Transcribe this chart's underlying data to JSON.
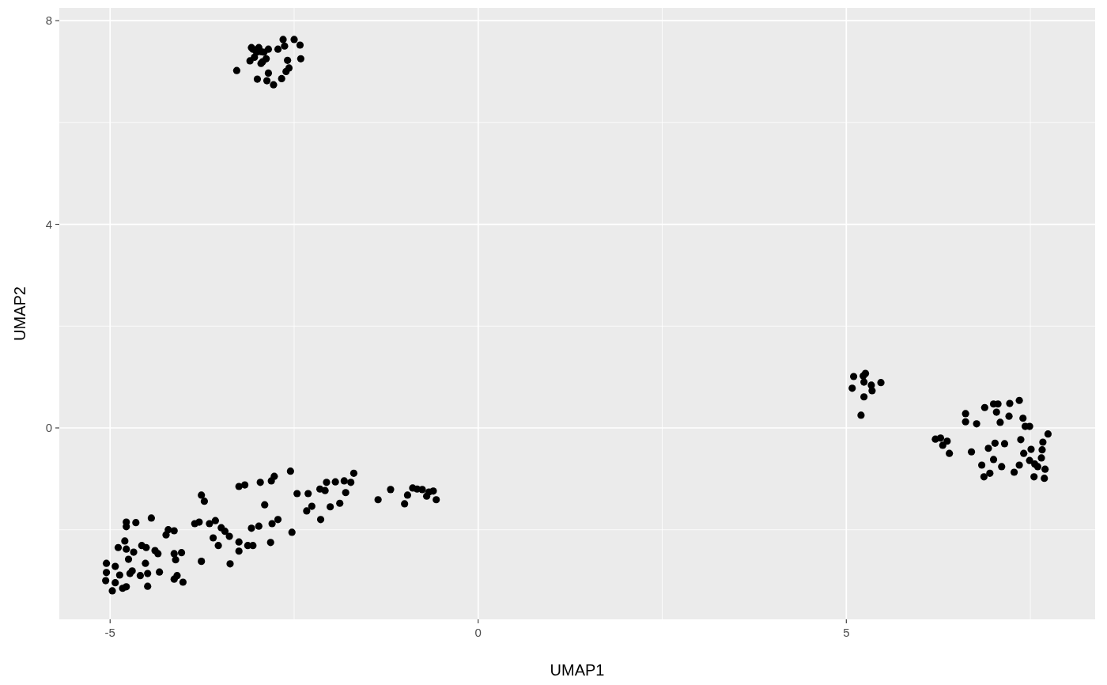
{
  "chart_data": {
    "type": "scatter",
    "xlabel": "UMAP1",
    "ylabel": "UMAP2",
    "xlim": [
      -5.69,
      8.38
    ],
    "ylim": [
      -3.76,
      8.25
    ],
    "xticks": [
      -5,
      0,
      5
    ],
    "yticks": [
      0,
      4,
      8
    ],
    "grid": true,
    "marker": "circle",
    "series": [
      {
        "color": "#000000",
        "x": [
          -5.05,
          -5.05,
          -5.06,
          -4.97,
          -4.93,
          -4.93,
          -4.87,
          -4.83,
          -4.78,
          -4.78,
          -4.78,
          -4.78,
          -4.89,
          -4.8,
          -4.73,
          -4.7,
          -4.75,
          -4.68,
          -4.65,
          -4.59,
          -4.57,
          -4.51,
          -4.52,
          -4.49,
          -4.49,
          -4.44,
          -4.39,
          -4.35,
          -4.33,
          -4.24,
          -4.21,
          -4.13,
          -4.11,
          -4.13,
          -4.13,
          -4.09,
          -4.03,
          -4.01,
          -3.76,
          -3.76,
          -3.72,
          -3.85,
          -3.79,
          -3.65,
          -3.6,
          -3.57,
          -3.53,
          -3.44,
          -3.49,
          -3.38,
          -3.37,
          -3.25,
          -3.25,
          -3.25,
          -3.17,
          -3.13,
          -3.06,
          -3.08,
          -2.96,
          -2.98,
          -2.9,
          -2.81,
          -2.82,
          -2.8,
          -2.77,
          -2.72,
          -2.55,
          -2.53,
          -2.46,
          -2.31,
          -2.26,
          -2.33,
          -2.14,
          -2.15,
          -2.06,
          -2.08,
          -2.01,
          -1.94,
          -1.88,
          -1.82,
          -1.8,
          -1.73,
          -1.69,
          -1.36,
          -1.19,
          -1.0,
          -0.96,
          -0.89,
          -0.83,
          -0.76,
          -0.7,
          -0.67,
          -0.61,
          -0.57,
          -3.28,
          -3.08,
          -3.06,
          -3.1,
          -3.04,
          -3.01,
          -2.98,
          -2.95,
          -2.91,
          -2.93,
          -2.88,
          -2.85,
          -3.0,
          -2.87,
          -2.85,
          -2.78,
          -2.72,
          -2.67,
          -2.65,
          -2.63,
          -2.59,
          -2.61,
          -2.57,
          -2.5,
          -2.42,
          -2.41,
          -2.95,
          5.08,
          5.1,
          5.23,
          5.26,
          5.24,
          5.34,
          5.35,
          5.47,
          5.24,
          5.2,
          6.62,
          6.62,
          6.77,
          6.88,
          7.0,
          7.06,
          7.04,
          7.09,
          7.21,
          7.22,
          7.35,
          7.4,
          7.43,
          7.49,
          6.21,
          6.28,
          6.31,
          6.37,
          6.4,
          6.7,
          6.93,
          7.02,
          7.15,
          7.37,
          7.74,
          7.67,
          7.66,
          7.51,
          7.41,
          7.0,
          7.11,
          6.84,
          6.95,
          6.87,
          7.28,
          7.35,
          7.49,
          7.65,
          7.56,
          7.7,
          7.55,
          7.69,
          7.6
        ],
        "values": [
          -2.66,
          -2.84,
          -3.0,
          -3.2,
          -3.04,
          -2.72,
          -2.89,
          -3.15,
          -3.12,
          -2.38,
          -1.94,
          -1.85,
          -2.35,
          -2.22,
          -2.86,
          -2.81,
          -2.58,
          -2.44,
          -1.86,
          -2.9,
          -2.31,
          -2.35,
          -2.66,
          -2.86,
          -3.11,
          -1.77,
          -2.41,
          -2.47,
          -2.83,
          -2.1,
          -2.0,
          -2.02,
          -2.59,
          -2.47,
          -2.97,
          -2.9,
          -2.45,
          -3.03,
          -2.62,
          -1.32,
          -1.44,
          -1.88,
          -1.85,
          -1.88,
          -2.16,
          -1.82,
          -2.31,
          -2.03,
          -1.96,
          -2.13,
          -2.67,
          -2.24,
          -2.42,
          -1.15,
          -1.12,
          -2.31,
          -2.31,
          -1.97,
          -1.07,
          -1.93,
          -1.51,
          -1.04,
          -2.25,
          -1.88,
          -0.95,
          -1.8,
          -0.85,
          -2.05,
          -1.29,
          -1.29,
          -1.54,
          -1.63,
          -1.8,
          -1.2,
          -1.07,
          -1.23,
          -1.55,
          -1.06,
          -1.48,
          -1.04,
          -1.27,
          -1.07,
          -0.89,
          -1.41,
          -1.21,
          -1.49,
          -1.32,
          -1.18,
          -1.2,
          -1.21,
          -1.34,
          -1.26,
          -1.24,
          -1.41,
          7.02,
          7.47,
          7.44,
          7.21,
          7.28,
          7.38,
          7.47,
          7.39,
          7.38,
          7.19,
          7.25,
          7.44,
          6.85,
          6.82,
          6.97,
          6.74,
          7.44,
          6.86,
          7.63,
          7.5,
          7.22,
          7.0,
          7.07,
          7.63,
          7.52,
          7.25,
          7.16,
          0.78,
          1.01,
          1.02,
          1.07,
          0.9,
          0.84,
          0.73,
          0.89,
          0.61,
          0.25,
          0.28,
          0.12,
          0.08,
          0.4,
          0.47,
          0.47,
          0.31,
          0.11,
          0.23,
          0.48,
          0.54,
          0.19,
          0.03,
          0.03,
          -0.22,
          -0.2,
          -0.34,
          -0.26,
          -0.5,
          -0.47,
          -0.4,
          -0.3,
          -0.31,
          -0.23,
          -0.12,
          -0.28,
          -0.43,
          -0.42,
          -0.5,
          -0.62,
          -0.76,
          -0.73,
          -0.89,
          -0.96,
          -0.87,
          -0.73,
          -0.64,
          -0.59,
          -0.71,
          -0.81,
          -0.96,
          -0.99,
          -0.76
        ]
      }
    ]
  }
}
